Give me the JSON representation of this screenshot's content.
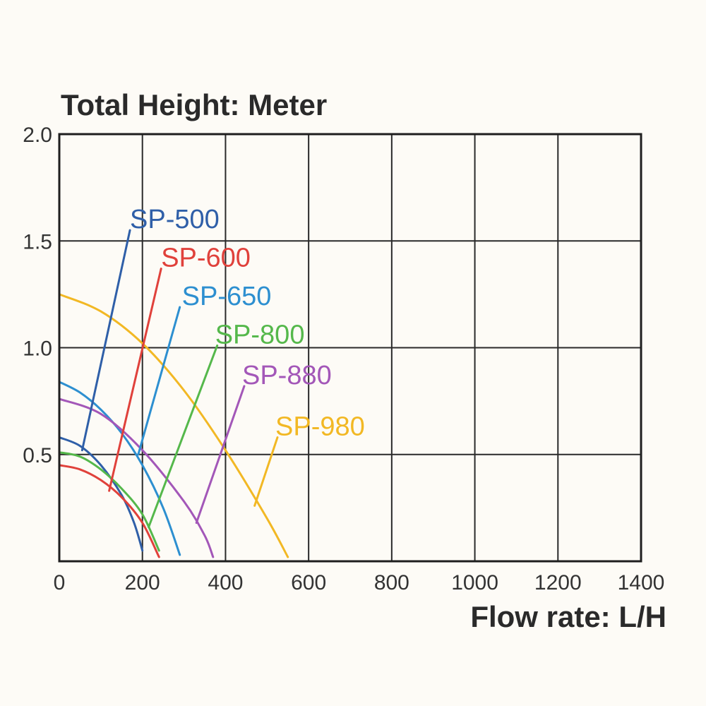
{
  "chart_data": {
    "type": "line",
    "ylabel": "Total Height:  Meter",
    "xlabel": "Flow rate:  L/H",
    "xlim": [
      0,
      1400
    ],
    "ylim": [
      0,
      2.0
    ],
    "x_ticks": [
      0,
      200,
      400,
      600,
      800,
      1000,
      1200,
      1400
    ],
    "x_tick_labels": [
      "0",
      "200",
      "400",
      "600",
      "800",
      "1000",
      "1200",
      "1400"
    ],
    "y_ticks": [
      0.5,
      1.0,
      1.5,
      2.0
    ],
    "y_tick_labels": [
      "0.5",
      "1.0",
      "1.5",
      "2.0"
    ],
    "grid": true,
    "series": [
      {
        "name": "SP-500",
        "color": "#2f5fa8",
        "x": [
          0,
          50,
          100,
          150,
          180,
          200
        ],
        "y": [
          0.58,
          0.54,
          0.45,
          0.31,
          0.18,
          0.05
        ]
      },
      {
        "name": "SP-600",
        "color": "#e0413b",
        "x": [
          0,
          50,
          100,
          150,
          200,
          240
        ],
        "y": [
          0.45,
          0.43,
          0.38,
          0.3,
          0.18,
          0.02
        ]
      },
      {
        "name": "SP-650",
        "color": "#2d8fd0",
        "x": [
          0,
          50,
          100,
          150,
          200,
          250,
          290
        ],
        "y": [
          0.84,
          0.79,
          0.71,
          0.6,
          0.45,
          0.25,
          0.03
        ]
      },
      {
        "name": "SP-800",
        "color": "#55b84b",
        "x": [
          0,
          50,
          100,
          150,
          200,
          240
        ],
        "y": [
          0.51,
          0.49,
          0.43,
          0.34,
          0.22,
          0.05
        ]
      },
      {
        "name": "SP-880",
        "color": "#a357b8",
        "x": [
          0,
          100,
          200,
          300,
          350,
          370
        ],
        "y": [
          0.76,
          0.69,
          0.52,
          0.28,
          0.12,
          0.02
        ]
      },
      {
        "name": "SP-980",
        "color": "#f2b824",
        "x": [
          0,
          100,
          200,
          300,
          400,
          500,
          550
        ],
        "y": [
          1.25,
          1.17,
          1.02,
          0.8,
          0.52,
          0.2,
          0.02
        ]
      }
    ],
    "series_labels": [
      {
        "text": "SP-500",
        "color": "#2f5fa8",
        "label_at": [
          170,
          1.6
        ],
        "leader_from": [
          170,
          1.55
        ],
        "leader_to": [
          55,
          0.52
        ]
      },
      {
        "text": "SP-600",
        "color": "#e0413b",
        "label_at": [
          245,
          1.42
        ],
        "leader_from": [
          245,
          1.37
        ],
        "leader_to": [
          120,
          0.33
        ]
      },
      {
        "text": "SP-650",
        "color": "#2d8fd0",
        "label_at": [
          295,
          1.24
        ],
        "leader_from": [
          290,
          1.19
        ],
        "leader_to": [
          190,
          0.5
        ]
      },
      {
        "text": "SP-800",
        "color": "#55b84b",
        "label_at": [
          375,
          1.06
        ],
        "leader_from": [
          380,
          1.01
        ],
        "leader_to": [
          215,
          0.16
        ]
      },
      {
        "text": "SP-880",
        "color": "#a357b8",
        "label_at": [
          440,
          0.87
        ],
        "leader_from": [
          445,
          0.82
        ],
        "leader_to": [
          330,
          0.18
        ]
      },
      {
        "text": "SP-980",
        "color": "#f2b824",
        "label_at": [
          520,
          0.63
        ],
        "leader_from": [
          525,
          0.58
        ],
        "leader_to": [
          470,
          0.26
        ]
      }
    ]
  }
}
